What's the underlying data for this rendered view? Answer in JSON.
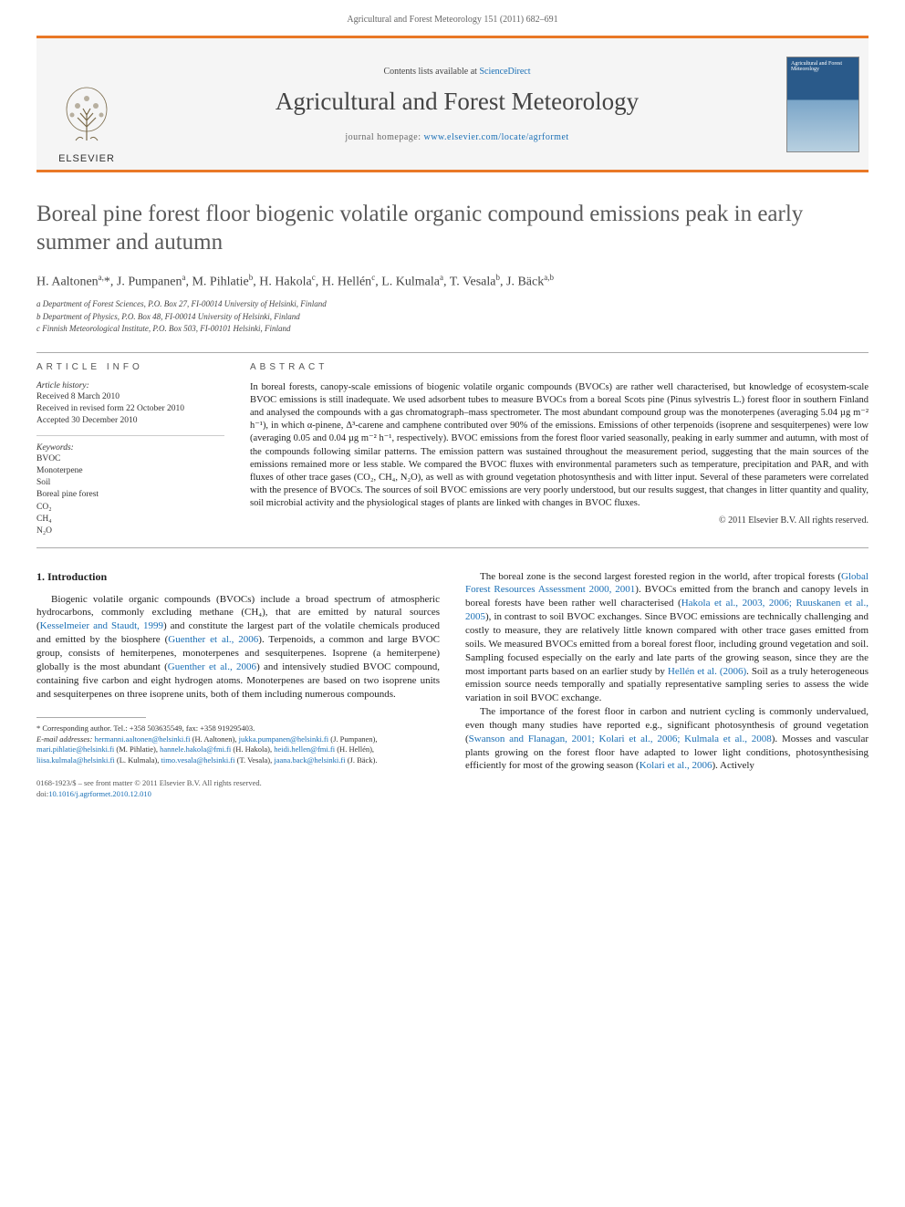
{
  "header": {
    "citation": "Agricultural and Forest Meteorology 151 (2011) 682–691"
  },
  "masthead": {
    "publisher": "ELSEVIER",
    "contents_prefix": "Contents lists available at ",
    "contents_link": "ScienceDirect",
    "journal_name": "Agricultural and Forest Meteorology",
    "homepage_prefix": "journal homepage: ",
    "homepage_url": "www.elsevier.com/locate/agrformet",
    "cover_text": "Agricultural and Forest Meteorology"
  },
  "article": {
    "title": "Boreal pine forest floor biogenic volatile organic compound emissions peak in early summer and autumn",
    "authors_html": "H. Aaltonen<sup>a,</sup><span class='star-sup'>*</span>, J. Pumpanen<sup>a</sup>, M. Pihlatie<sup>b</sup>, H. Hakola<sup>c</sup>, H. Hellén<sup>c</sup>, L. Kulmala<sup>a</sup>, T. Vesala<sup>b</sup>, J. Bäck<sup>a,b</sup>",
    "affiliations": [
      "a Department of Forest Sciences, P.O. Box 27, FI-00014 University of Helsinki, Finland",
      "b Department of Physics, P.O. Box 48, FI-00014 University of Helsinki, Finland",
      "c Finnish Meteorological Institute, P.O. Box 503, FI-00101 Helsinki, Finland"
    ]
  },
  "info": {
    "heading": "ARTICLE INFO",
    "history_label": "Article history:",
    "history": [
      "Received 8 March 2010",
      "Received in revised form 22 October 2010",
      "Accepted 30 December 2010"
    ],
    "keywords_label": "Keywords:",
    "keywords": [
      "BVOC",
      "Monoterpene",
      "Soil",
      "Boreal pine forest",
      "CO₂",
      "CH₄",
      "N₂O"
    ]
  },
  "abstract": {
    "heading": "ABSTRACT",
    "text": "In boreal forests, canopy-scale emissions of biogenic volatile organic compounds (BVOCs) are rather well characterised, but knowledge of ecosystem-scale BVOC emissions is still inadequate. We used adsorbent tubes to measure BVOCs from a boreal Scots pine (Pinus sylvestris L.) forest floor in southern Finland and analysed the compounds with a gas chromatograph–mass spectrometer. The most abundant compound group was the monoterpenes (averaging 5.04 µg m⁻² h⁻¹), in which α-pinene, Δ³-carene and camphene contributed over 90% of the emissions. Emissions of other terpenoids (isoprene and sesquiterpenes) were low (averaging 0.05 and 0.04 µg m⁻² h⁻¹, respectively). BVOC emissions from the forest floor varied seasonally, peaking in early summer and autumn, with most of the compounds following similar patterns. The emission pattern was sustained throughout the measurement period, suggesting that the main sources of the emissions remained more or less stable. We compared the BVOC fluxes with environmental parameters such as temperature, precipitation and PAR, and with fluxes of other trace gases (CO₂, CH₄, N₂O), as well as with ground vegetation photosynthesis and with litter input. Several of these parameters were correlated with the presence of BVOCs. The sources of soil BVOC emissions are very poorly understood, but our results suggest, that changes in litter quantity and quality, soil microbial activity and the physiological stages of plants are linked with changes in BVOC fluxes.",
    "copyright": "© 2011 Elsevier B.V. All rights reserved."
  },
  "body": {
    "section1_heading": "1. Introduction",
    "col1_p1": "Biogenic volatile organic compounds (BVOCs) include a broad spectrum of atmospheric hydrocarbons, commonly excluding methane (CH₄), that are emitted by natural sources (Kesselmeier and Staudt, 1999) and constitute the largest part of the volatile chemicals produced and emitted by the biosphere (Guenther et al., 2006). Terpenoids, a common and large BVOC group, consists of hemiterpenes, monoterpenes and sesquiterpenes. Isoprene (a hemiterpene) globally is the most abundant (Guenther et al., 2006) and intensively studied BVOC compound, containing five carbon and eight hydrogen atoms. Monoterpenes are based on two isoprene units and sesquiterpenes on three isoprene units, both of them including numerous compounds.",
    "col2_p1": "The boreal zone is the second largest forested region in the world, after tropical forests (Global Forest Resources Assessment 2000, 2001). BVOCs emitted from the branch and canopy levels in boreal forests have been rather well characterised (Hakola et al., 2003, 2006; Ruuskanen et al., 2005), in contrast to soil BVOC exchanges. Since BVOC emissions are technically challenging and costly to measure, they are relatively little known compared with other trace gases emitted from soils. We measured BVOCs emitted from a boreal forest floor, including ground vegetation and soil. Sampling focused especially on the early and late parts of the growing season, since they are the most important parts based on an earlier study by Hellén et al. (2006). Soil as a truly heterogeneous emission source needs temporally and spatially representative sampling series to assess the wide variation in soil BVOC exchange.",
    "col2_p2": "The importance of the forest floor in carbon and nutrient cycling is commonly undervalued, even though many studies have reported e.g., significant photosynthesis of ground vegetation (Swanson and Flanagan, 2001; Kolari et al., 2006; Kulmala et al., 2008). Mosses and vascular plants growing on the forest floor have adapted to lower light conditions, photosynthesising efficiently for most of the growing season (Kolari et al., 2006). Actively"
  },
  "footnote": {
    "corr": "* Corresponding author. Tel.: +358 503635549, fax: +358 919295403.",
    "email_label": "E-mail addresses:",
    "emails": [
      {
        "addr": "hermanni.aaltonen@helsinki.fi",
        "who": "(H. Aaltonen),"
      },
      {
        "addr": "jukka.pumpanen@helsinki.fi",
        "who": "(J. Pumpanen),"
      },
      {
        "addr": "mari.pihlatie@helsinki.fi",
        "who": ""
      },
      {
        "addr": "",
        "who": "(M. Pihlatie),"
      },
      {
        "addr": "hannele.hakola@fmi.fi",
        "who": "(H. Hakola),"
      },
      {
        "addr": "heidi.hellen@fmi.fi",
        "who": ""
      },
      {
        "addr": "",
        "who": "(H. Hellén),"
      },
      {
        "addr": "liisa.kulmala@helsinki.fi",
        "who": "(L. Kulmala),"
      },
      {
        "addr": "timo.vesala@helsinki.fi",
        "who": ""
      },
      {
        "addr": "",
        "who": "(T. Vesala),"
      },
      {
        "addr": "jaana.back@helsinki.fi",
        "who": "(J. Bäck)."
      }
    ]
  },
  "footer": {
    "issn_line": "0168-1923/$ – see front matter © 2011 Elsevier B.V. All rights reserved.",
    "doi_label": "doi:",
    "doi": "10.1016/j.agrformet.2010.12.010"
  },
  "colors": {
    "accent": "#e97826",
    "link": "#1a6fb5",
    "text": "#333333",
    "heading": "#5a5a5a",
    "background": "#ffffff",
    "masthead_bg": "#f5f5f5"
  },
  "typography": {
    "title_fontsize": 25,
    "journal_fontsize": 27,
    "body_fontsize": 11,
    "abstract_fontsize": 10.5,
    "footnote_fontsize": 8.5,
    "font_family": "Georgia, Times New Roman, serif"
  }
}
